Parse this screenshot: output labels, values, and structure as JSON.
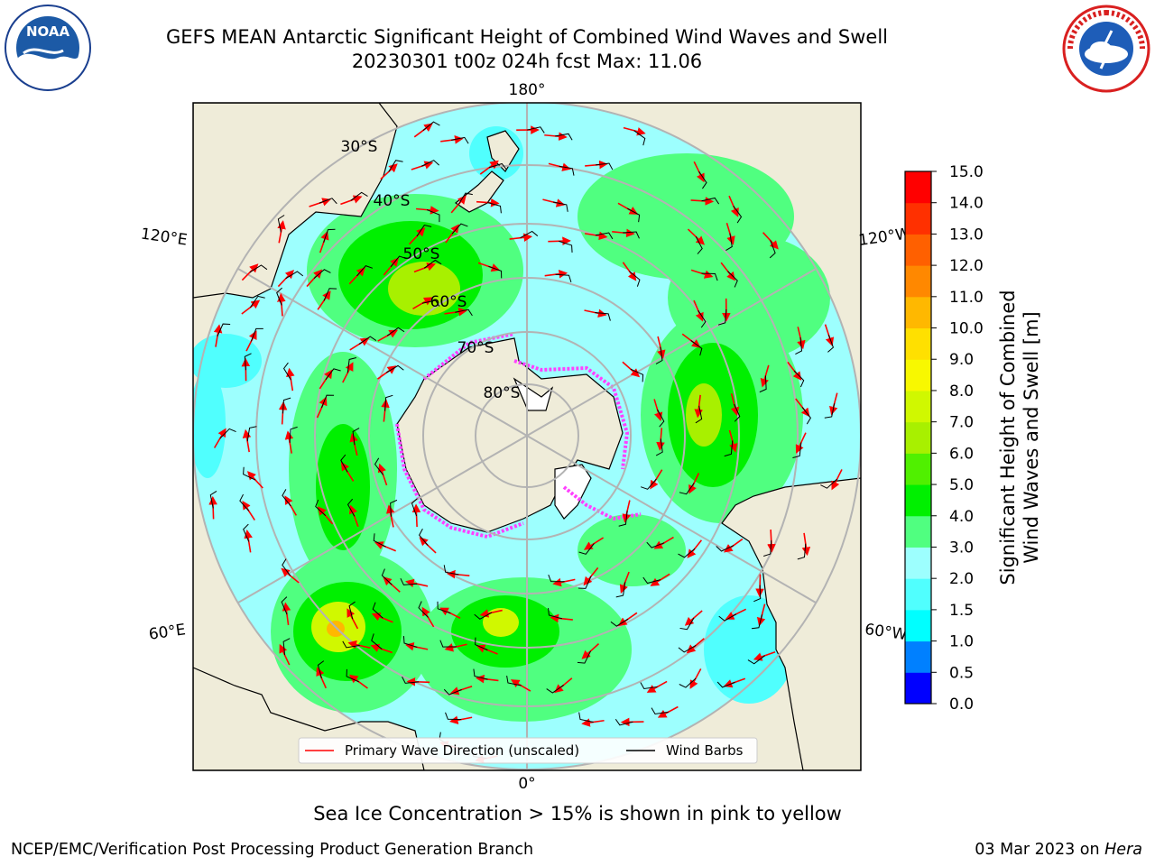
{
  "header": {
    "title_line1": "GEFS MEAN Antarctic Significant Height of Combined Wind Waves and Swell",
    "title_line2": "20230301 t00z 024h fcst   Max: 11.06",
    "noaa_logo_text": "NOAA",
    "noaa_ring_text": "NATIONAL OCEANIC AND ATMOSPHERIC ADMINISTRATION · U.S. DEPARTMENT OF COMMERCE",
    "nws_ring_text": "NATIONAL WEATHER SERVICE"
  },
  "map": {
    "projection": "south polar stereographic",
    "lon_labels": {
      "top": "180°",
      "bottom": "0°",
      "upper_left": "120°E",
      "upper_right": "120°W",
      "lower_left": "60°E",
      "lower_right": "60°W"
    },
    "lat_labels": [
      "30°S",
      "40°S",
      "50°S",
      "60°S",
      "70°S",
      "80°S"
    ],
    "legend": {
      "primary_wave": "Primary Wave Direction (unscaled)",
      "wind_barbs": "Wind Barbs"
    },
    "colors": {
      "land": "#efecd9",
      "ocean_low": "#9dfffe",
      "grid": "#b3b3b3",
      "arrow": "#ff0000"
    }
  },
  "colorbar": {
    "label_line1": "Significant Height of Combined",
    "label_line2": "Wind Waves and Swell [m]",
    "ticks": [
      "0.0",
      "0.5",
      "1.0",
      "1.5",
      "2.0",
      "3.0",
      "4.0",
      "5.0",
      "6.0",
      "7.0",
      "8.0",
      "9.0",
      "10.0",
      "11.0",
      "12.0",
      "13.0",
      "14.0",
      "15.0"
    ],
    "colors": [
      "#0000ff",
      "#0080ff",
      "#00ffff",
      "#50fffe",
      "#9dfffe",
      "#50ff80",
      "#00f000",
      "#50f000",
      "#a8f000",
      "#d0f800",
      "#f8f800",
      "#ffe000",
      "#ffb800",
      "#ff8800",
      "#ff6000",
      "#ff3000",
      "#ff0000"
    ]
  },
  "caption": "Sea Ice Concentration > 15% is shown in pink to yellow",
  "footer": {
    "left": "NCEP/EMC/Verification Post Processing Product Generation Branch",
    "right_date": "03 Mar 2023 on ",
    "right_host": "Hera"
  }
}
